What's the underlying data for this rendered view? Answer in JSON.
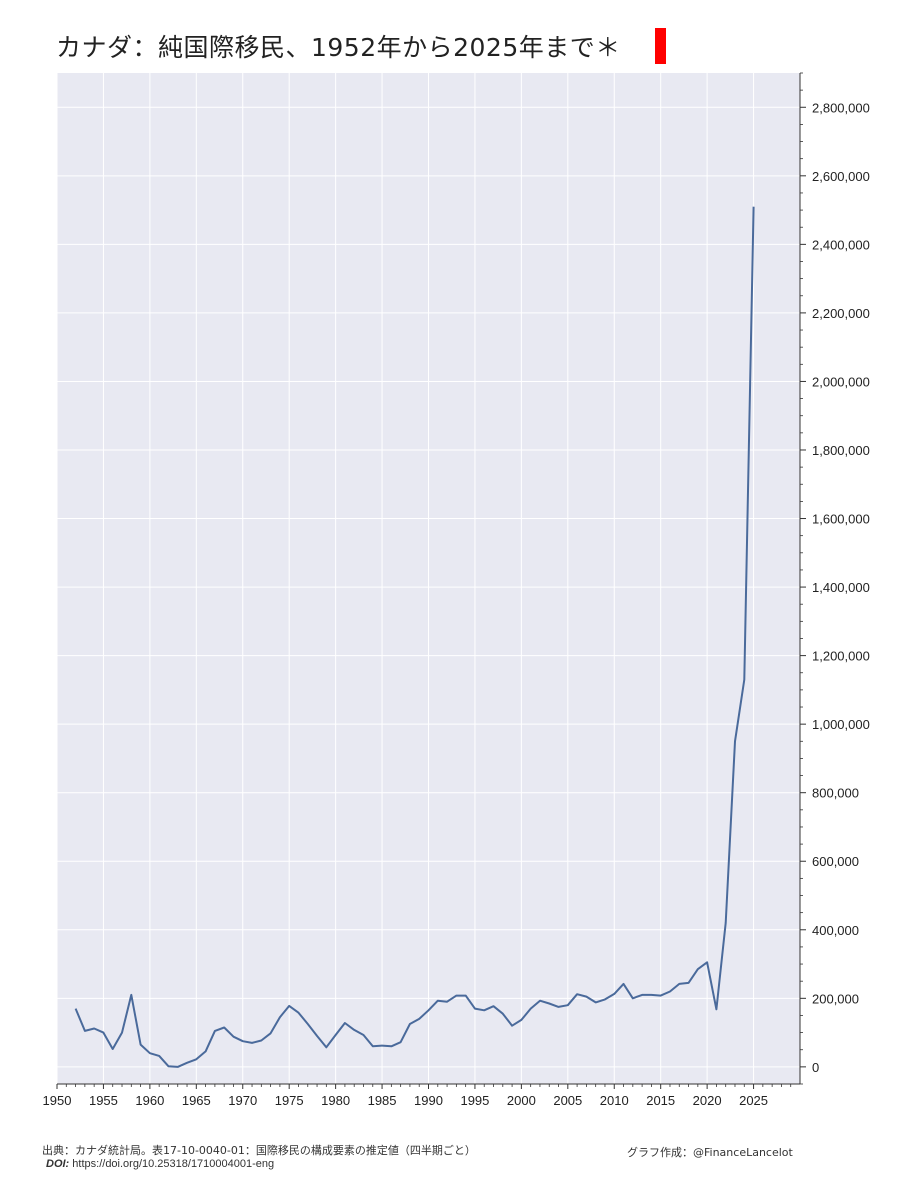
{
  "chart_data": {
    "type": "line",
    "title": "カナダ：純国際移民、1952年から2025年まで＊",
    "xlabel": "",
    "ylabel": "",
    "xlim": [
      1950,
      2030
    ],
    "ylim": [
      -50000,
      2900000
    ],
    "x_ticks": [
      1950,
      1955,
      1960,
      1965,
      1970,
      1975,
      1980,
      1985,
      1990,
      1995,
      2000,
      2005,
      2010,
      2015,
      2020,
      2025
    ],
    "x_tick_labels": [
      "1950",
      "1955",
      "1960",
      "1965",
      "1970",
      "1975",
      "1980",
      "1985",
      "1990",
      "1995",
      "2000",
      "2005",
      "2010",
      "2015",
      "2020",
      "2025"
    ],
    "y_ticks": [
      0,
      200000,
      400000,
      600000,
      800000,
      1000000,
      1200000,
      1400000,
      1600000,
      1800000,
      2000000,
      2200000,
      2400000,
      2600000,
      2800000
    ],
    "y_tick_labels": [
      "0",
      "200,000",
      "400,000",
      "600,000",
      "800,000",
      "1,000,000",
      "1,200,000",
      "1,400,000",
      "1,600,000",
      "1,800,000",
      "2,000,000",
      "2,200,000",
      "2,400,000",
      "2,600,000",
      "2,800,000"
    ],
    "y_axis_side": "right",
    "grid": true,
    "background": "#e8e9f2",
    "series": [
      {
        "name": "",
        "color": "#4a6a9b",
        "x": [
          1952,
          1953,
          1954,
          1955,
          1956,
          1957,
          1958,
          1959,
          1960,
          1961,
          1962,
          1963,
          1964,
          1965,
          1966,
          1967,
          1968,
          1969,
          1970,
          1971,
          1972,
          1973,
          1974,
          1975,
          1976,
          1977,
          1978,
          1979,
          1980,
          1981,
          1982,
          1983,
          1984,
          1985,
          1986,
          1987,
          1988,
          1989,
          1990,
          1991,
          1992,
          1993,
          1994,
          1995,
          1996,
          1997,
          1998,
          1999,
          2000,
          2001,
          2002,
          2003,
          2004,
          2005,
          2006,
          2007,
          2008,
          2009,
          2010,
          2011,
          2012,
          2013,
          2014,
          2015,
          2016,
          2017,
          2018,
          2019,
          2020,
          2021,
          2022,
          2023,
          2024,
          2025
        ],
        "y": [
          170000,
          105000,
          112000,
          100000,
          52000,
          100000,
          210000,
          65000,
          40000,
          32000,
          2000,
          0,
          12000,
          22000,
          45000,
          105000,
          115000,
          88000,
          75000,
          70000,
          77000,
          98000,
          145000,
          178000,
          158000,
          125000,
          90000,
          57000,
          93000,
          128000,
          108000,
          93000,
          60000,
          62000,
          60000,
          72000,
          125000,
          140000,
          165000,
          193000,
          190000,
          208000,
          208000,
          170000,
          165000,
          177000,
          155000,
          120000,
          137000,
          170000,
          193000,
          185000,
          175000,
          180000,
          212000,
          205000,
          188000,
          197000,
          213000,
          242000,
          200000,
          210000,
          210000,
          208000,
          220000,
          242000,
          245000,
          285000,
          305000,
          168000,
          420000,
          950000,
          1130000,
          2510000
        ]
      }
    ]
  },
  "footer": {
    "source": "出典：カナダ統計局。表17-10-0040-01：国際移民の構成要素の推定値（四半期ごと）",
    "doi_prefix": "DOI:",
    "doi": "https://doi.org/10.25318/1710004001-eng",
    "credit": "グラフ作成：@FinanceLancelot"
  }
}
